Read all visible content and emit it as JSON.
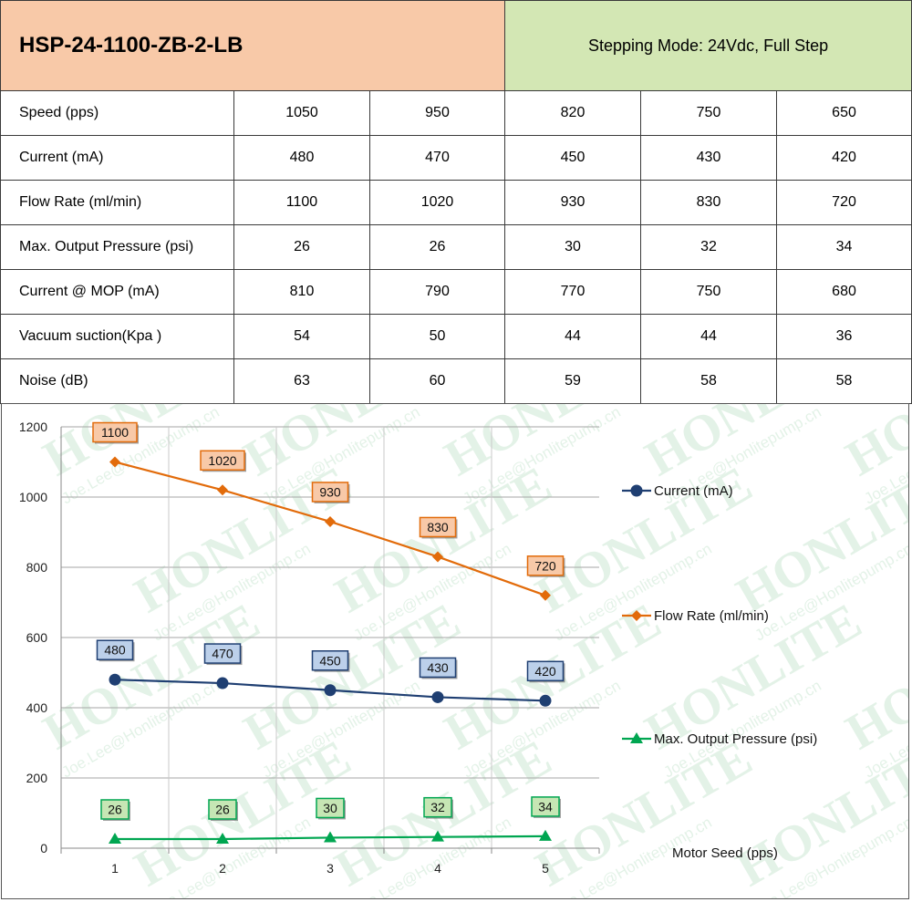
{
  "header": {
    "model": "HSP-24-1100-ZB-2-LB",
    "mode": "Stepping Mode: 24Vdc, Full Step"
  },
  "table": {
    "rows": [
      {
        "label": "Speed (pps)",
        "values": [
          "1050",
          "950",
          "820",
          "750",
          "650"
        ]
      },
      {
        "label": "Current (mA)",
        "values": [
          "480",
          "470",
          "450",
          "430",
          "420"
        ]
      },
      {
        "label": "Flow Rate (ml/min)",
        "values": [
          "1100",
          "1020",
          "930",
          "830",
          "720"
        ]
      },
      {
        "label": "Max. Output Pressure (psi)",
        "values": [
          "26",
          "26",
          "30",
          "32",
          "34"
        ]
      },
      {
        "label": "Current @ MOP (mA)",
        "values": [
          "810",
          "790",
          "770",
          "750",
          "680"
        ]
      },
      {
        "label": "Vacuum suction(Kpa )",
        "values": [
          "54",
          "50",
          "44",
          "44",
          "36"
        ]
      },
      {
        "label": "Noise (dB)",
        "values": [
          "63",
          "60",
          "59",
          "58",
          "58"
        ]
      }
    ]
  },
  "watermark": {
    "brand": "HONLITE",
    "email": "Joe.Lee@Honlitepump.cn"
  },
  "chart_data": {
    "type": "line",
    "categories": [
      "1",
      "2",
      "3",
      "4",
      "5"
    ],
    "series": [
      {
        "name": "Current (mA)",
        "values": [
          480,
          470,
          450,
          430,
          420
        ],
        "color": "#1f3f72",
        "marker": "circle",
        "label_fill": "#bcd0ea"
      },
      {
        "name": "Flow Rate (ml/min)",
        "values": [
          1100,
          1020,
          930,
          830,
          720
        ],
        "color": "#e26b0a",
        "marker": "diamond",
        "label_fill": "#f8c9a8"
      },
      {
        "name": "Max. Output Pressure (psi)",
        "values": [
          26,
          26,
          30,
          32,
          34
        ],
        "color": "#00a651",
        "marker": "triangle",
        "label_fill": "#c6e6b4"
      }
    ],
    "xlabel": "Motor Seed (pps)",
    "ylabel": "",
    "ylim": [
      0,
      1200
    ],
    "yticks": [
      0,
      200,
      400,
      600,
      800,
      1000,
      1200
    ],
    "grid": true,
    "legend": "right"
  }
}
